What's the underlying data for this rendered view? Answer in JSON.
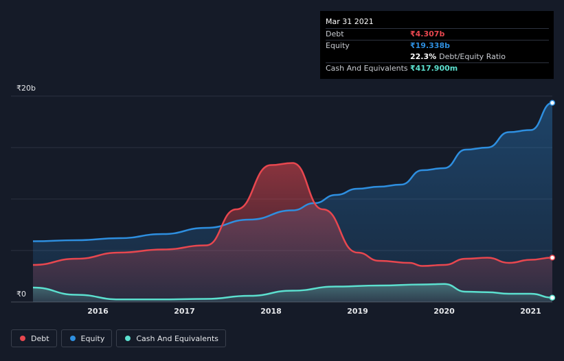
{
  "tooltip": {
    "date": "Mar 31 2021",
    "rows": [
      {
        "label": "Debt",
        "value": "₹4.307b",
        "color": "#e8474f"
      },
      {
        "label": "Equity",
        "value": "₹19.338b",
        "color": "#2e8fe0"
      },
      {
        "ratio_value": "22.3%",
        "ratio_label": "Debt/Equity Ratio"
      },
      {
        "label": "Cash And Equivalents",
        "value": "₹417.900m",
        "color": "#5ce0cf"
      }
    ]
  },
  "legend": [
    {
      "label": "Debt",
      "color": "#e8474f"
    },
    {
      "label": "Equity",
      "color": "#2e8fe0"
    },
    {
      "label": "Cash And Equivalents",
      "color": "#5ce0cf"
    }
  ],
  "chart_data": {
    "type": "area",
    "title": "",
    "xlabel": "",
    "ylabel": "",
    "y_tick_labels": [
      "₹0",
      "₹20b"
    ],
    "ylim": [
      0,
      20
    ],
    "xlim": [
      2015.25,
      2021.25
    ],
    "x_ticks": [
      2016,
      2017,
      2018,
      2019,
      2020,
      2021
    ],
    "x_tick_labels": [
      "2016",
      "2017",
      "2018",
      "2019",
      "2020",
      "2021"
    ],
    "gridlines": [
      0,
      5,
      10,
      15,
      20
    ],
    "grid": true,
    "legend_position": "bottom-left",
    "series": [
      {
        "name": "Equity",
        "color": "#2e8fe0",
        "points": [
          [
            2015.25,
            5.9
          ],
          [
            2015.75,
            6.0
          ],
          [
            2016.25,
            6.2
          ],
          [
            2016.75,
            6.6
          ],
          [
            2017.25,
            7.2
          ],
          [
            2017.75,
            8.0
          ],
          [
            2018.25,
            8.9
          ],
          [
            2018.5,
            9.6
          ],
          [
            2018.75,
            10.4
          ],
          [
            2019.0,
            11.0
          ],
          [
            2019.25,
            11.2
          ],
          [
            2019.5,
            11.4
          ],
          [
            2019.75,
            12.8
          ],
          [
            2020.0,
            13.0
          ],
          [
            2020.25,
            14.8
          ],
          [
            2020.5,
            15.0
          ],
          [
            2020.75,
            16.5
          ],
          [
            2021.0,
            16.7
          ],
          [
            2021.25,
            19.338
          ]
        ]
      },
      {
        "name": "Debt",
        "color": "#e8474f",
        "points": [
          [
            2015.25,
            3.6
          ],
          [
            2015.75,
            4.2
          ],
          [
            2016.25,
            4.8
          ],
          [
            2016.75,
            5.1
          ],
          [
            2017.25,
            5.5
          ],
          [
            2017.6,
            9.0
          ],
          [
            2018.0,
            13.3
          ],
          [
            2018.25,
            13.5
          ],
          [
            2018.6,
            9.0
          ],
          [
            2019.0,
            4.8
          ],
          [
            2019.25,
            4.0
          ],
          [
            2019.6,
            3.8
          ],
          [
            2019.75,
            3.5
          ],
          [
            2020.0,
            3.6
          ],
          [
            2020.25,
            4.2
          ],
          [
            2020.5,
            4.3
          ],
          [
            2020.75,
            3.8
          ],
          [
            2021.0,
            4.1
          ],
          [
            2021.25,
            4.307
          ]
        ]
      },
      {
        "name": "Cash And Equivalents",
        "color": "#5ce0cf",
        "points": [
          [
            2015.25,
            1.4
          ],
          [
            2015.75,
            0.7
          ],
          [
            2016.25,
            0.25
          ],
          [
            2016.75,
            0.25
          ],
          [
            2017.25,
            0.3
          ],
          [
            2017.75,
            0.6
          ],
          [
            2018.25,
            1.1
          ],
          [
            2018.75,
            1.5
          ],
          [
            2019.25,
            1.6
          ],
          [
            2019.75,
            1.7
          ],
          [
            2020.0,
            1.75
          ],
          [
            2020.25,
            1.0
          ],
          [
            2020.5,
            0.95
          ],
          [
            2020.75,
            0.8
          ],
          [
            2021.0,
            0.8
          ],
          [
            2021.25,
            0.418
          ]
        ]
      }
    ]
  }
}
